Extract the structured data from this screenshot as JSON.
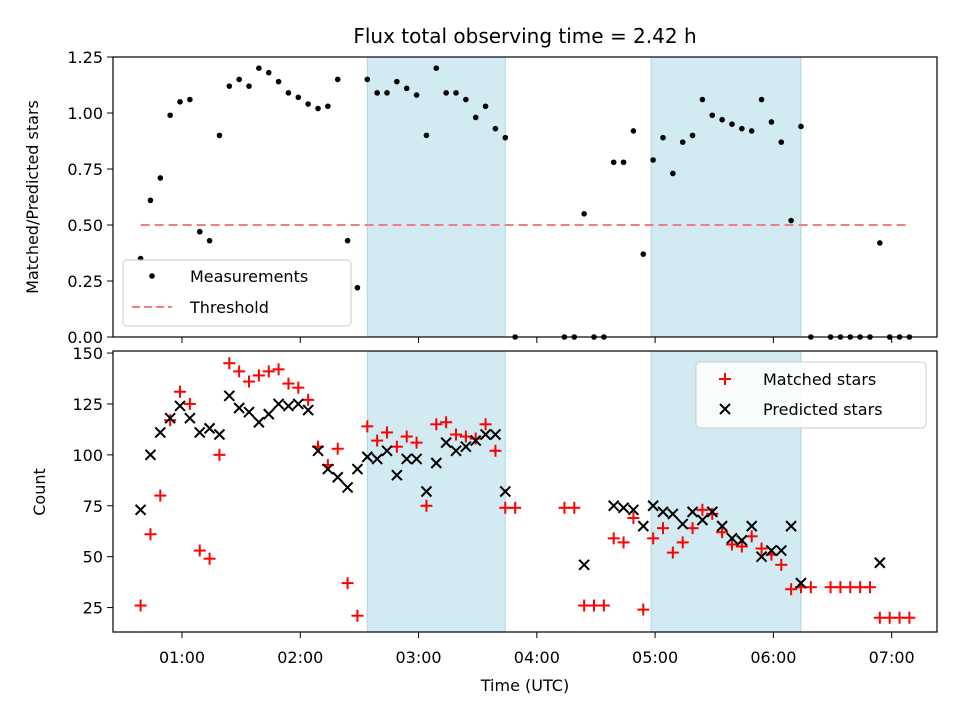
{
  "chart_data": [
    {
      "type": "scatter",
      "title": "Flux total observing time = 2.42 h",
      "xlabel": "",
      "ylabel": "Matched/Predicted stars",
      "xlim": [
        "00:25",
        "07:23"
      ],
      "ylim": [
        0,
        1.25
      ],
      "grid": false,
      "legend_position": "lower-left",
      "y_ticks": [
        "0.00",
        "0.25",
        "0.50",
        "0.75",
        "1.00",
        "1.25"
      ],
      "shaded_intervals": [
        [
          "02:34",
          "03:44"
        ],
        [
          "04:58",
          "06:14"
        ]
      ],
      "shade_color": "#add8e6",
      "series": [
        {
          "name": "Measurements",
          "marker": "dot",
          "color": "#000000",
          "points": [
            [
              "00:39",
              0.35
            ],
            [
              "00:44",
              0.61
            ],
            [
              "00:49",
              0.71
            ],
            [
              "00:54",
              0.99
            ],
            [
              "00:59",
              1.05
            ],
            [
              "01:04",
              1.06
            ],
            [
              "01:09",
              0.47
            ],
            [
              "01:14",
              0.43
            ],
            [
              "01:19",
              0.9
            ],
            [
              "01:24",
              1.12
            ],
            [
              "01:29",
              1.15
            ],
            [
              "01:34",
              1.12
            ],
            [
              "01:39",
              1.2
            ],
            [
              "01:44",
              1.18
            ],
            [
              "01:49",
              1.14
            ],
            [
              "01:54",
              1.09
            ],
            [
              "01:59",
              1.07
            ],
            [
              "02:04",
              1.04
            ],
            [
              "02:09",
              1.02
            ],
            [
              "02:14",
              1.03
            ],
            [
              "02:19",
              1.15
            ],
            [
              "02:24",
              0.43
            ],
            [
              "02:29",
              0.22
            ],
            [
              "02:34",
              1.15
            ],
            [
              "02:39",
              1.09
            ],
            [
              "02:44",
              1.09
            ],
            [
              "02:49",
              1.14
            ],
            [
              "02:54",
              1.11
            ],
            [
              "02:59",
              1.08
            ],
            [
              "03:04",
              0.9
            ],
            [
              "03:09",
              1.2
            ],
            [
              "03:14",
              1.09
            ],
            [
              "03:19",
              1.09
            ],
            [
              "03:24",
              1.06
            ],
            [
              "03:29",
              0.98
            ],
            [
              "03:34",
              1.03
            ],
            [
              "03:39",
              0.93
            ],
            [
              "03:44",
              0.89
            ],
            [
              "03:49",
              0.0
            ],
            [
              "04:14",
              0.0
            ],
            [
              "04:19",
              0.0
            ],
            [
              "04:24",
              0.55
            ],
            [
              "04:29",
              0.0
            ],
            [
              "04:34",
              0.0
            ],
            [
              "04:39",
              0.78
            ],
            [
              "04:44",
              0.78
            ],
            [
              "04:49",
              0.92
            ],
            [
              "04:54",
              0.37
            ],
            [
              "04:59",
              0.79
            ],
            [
              "05:04",
              0.89
            ],
            [
              "05:09",
              0.73
            ],
            [
              "05:14",
              0.87
            ],
            [
              "05:19",
              0.9
            ],
            [
              "05:24",
              1.06
            ],
            [
              "05:29",
              0.99
            ],
            [
              "05:34",
              0.97
            ],
            [
              "05:39",
              0.95
            ],
            [
              "05:44",
              0.93
            ],
            [
              "05:49",
              0.92
            ],
            [
              "05:54",
              1.06
            ],
            [
              "05:59",
              0.96
            ],
            [
              "06:04",
              0.87
            ],
            [
              "06:09",
              0.52
            ],
            [
              "06:14",
              0.94
            ],
            [
              "06:19",
              0.0
            ],
            [
              "06:29",
              0.0
            ],
            [
              "06:34",
              0.0
            ],
            [
              "06:39",
              0.0
            ],
            [
              "06:44",
              0.0
            ],
            [
              "06:49",
              0.0
            ],
            [
              "06:54",
              0.42
            ],
            [
              "06:59",
              0.0
            ],
            [
              "07:04",
              0.0
            ],
            [
              "07:09",
              0.0
            ]
          ]
        },
        {
          "name": "Threshold",
          "style": "dashed",
          "color": "#f08080",
          "points": [
            [
              "00:39",
              0.5
            ],
            [
              "07:09",
              0.5
            ]
          ]
        }
      ]
    },
    {
      "type": "scatter",
      "title": "",
      "xlabel": "Time (UTC)",
      "ylabel": "Count",
      "xlim": [
        "00:25",
        "07:23"
      ],
      "ylim": [
        13,
        151
      ],
      "grid": false,
      "legend_position": "top-right",
      "y_ticks": [
        "25",
        "50",
        "75",
        "100",
        "125",
        "150"
      ],
      "x_ticks": [
        "01:00",
        "02:00",
        "03:00",
        "04:00",
        "05:00",
        "06:00",
        "07:00"
      ],
      "shaded_intervals": [
        [
          "02:34",
          "03:44"
        ],
        [
          "04:58",
          "06:14"
        ]
      ],
      "shade_color": "#add8e6",
      "series": [
        {
          "name": "Matched stars",
          "marker": "plus",
          "color": "#ff0000",
          "points": [
            [
              "00:39",
              26
            ],
            [
              "00:44",
              61
            ],
            [
              "00:49",
              80
            ],
            [
              "00:54",
              117
            ],
            [
              "00:59",
              131
            ],
            [
              "01:04",
              125
            ],
            [
              "01:09",
              53
            ],
            [
              "01:14",
              49
            ],
            [
              "01:19",
              100
            ],
            [
              "01:24",
              145
            ],
            [
              "01:29",
              141
            ],
            [
              "01:34",
              136
            ],
            [
              "01:39",
              139
            ],
            [
              "01:44",
              141
            ],
            [
              "01:49",
              142
            ],
            [
              "01:54",
              135
            ],
            [
              "01:59",
              133
            ],
            [
              "02:04",
              127
            ],
            [
              "02:09",
              104
            ],
            [
              "02:14",
              95
            ],
            [
              "02:19",
              103
            ],
            [
              "02:24",
              37
            ],
            [
              "02:29",
              21
            ],
            [
              "02:34",
              114
            ],
            [
              "02:39",
              107
            ],
            [
              "02:44",
              111
            ],
            [
              "02:49",
              104
            ],
            [
              "02:54",
              109
            ],
            [
              "02:59",
              106
            ],
            [
              "03:04",
              75
            ],
            [
              "03:09",
              115
            ],
            [
              "03:14",
              116
            ],
            [
              "03:19",
              110
            ],
            [
              "03:24",
              109
            ],
            [
              "03:29",
              108
            ],
            [
              "03:34",
              115
            ],
            [
              "03:39",
              102
            ],
            [
              "03:44",
              74
            ],
            [
              "03:49",
              74
            ],
            [
              "04:14",
              74
            ],
            [
              "04:19",
              74
            ],
            [
              "04:24",
              26
            ],
            [
              "04:29",
              26
            ],
            [
              "04:34",
              26
            ],
            [
              "04:39",
              59
            ],
            [
              "04:44",
              57
            ],
            [
              "04:49",
              69
            ],
            [
              "04:54",
              24
            ],
            [
              "04:59",
              59
            ],
            [
              "05:04",
              64
            ],
            [
              "05:09",
              52
            ],
            [
              "05:14",
              57
            ],
            [
              "05:19",
              64
            ],
            [
              "05:24",
              73
            ],
            [
              "05:29",
              71
            ],
            [
              "05:34",
              62
            ],
            [
              "05:39",
              56
            ],
            [
              "05:44",
              55
            ],
            [
              "05:49",
              60
            ],
            [
              "05:54",
              54
            ],
            [
              "05:59",
              51
            ],
            [
              "06:04",
              46
            ],
            [
              "06:09",
              34
            ],
            [
              "06:14",
              35
            ],
            [
              "06:19",
              35
            ],
            [
              "06:29",
              35
            ],
            [
              "06:34",
              35
            ],
            [
              "06:39",
              35
            ],
            [
              "06:44",
              35
            ],
            [
              "06:49",
              35
            ],
            [
              "06:54",
              20
            ],
            [
              "06:59",
              20
            ],
            [
              "07:04",
              20
            ],
            [
              "07:09",
              20
            ]
          ]
        },
        {
          "name": "Predicted stars",
          "marker": "x",
          "color": "#000000",
          "points": [
            [
              "00:39",
              73
            ],
            [
              "00:44",
              100
            ],
            [
              "00:49",
              111
            ],
            [
              "00:54",
              118
            ],
            [
              "00:59",
              124
            ],
            [
              "01:04",
              118
            ],
            [
              "01:09",
              111
            ],
            [
              "01:14",
              113
            ],
            [
              "01:19",
              110
            ],
            [
              "01:24",
              129
            ],
            [
              "01:29",
              123
            ],
            [
              "01:34",
              121
            ],
            [
              "01:39",
              116
            ],
            [
              "01:44",
              120
            ],
            [
              "01:49",
              125
            ],
            [
              "01:54",
              124
            ],
            [
              "01:59",
              125
            ],
            [
              "02:04",
              122
            ],
            [
              "02:09",
              102
            ],
            [
              "02:14",
              93
            ],
            [
              "02:19",
              89
            ],
            [
              "02:24",
              84
            ],
            [
              "02:29",
              93
            ],
            [
              "02:34",
              99
            ],
            [
              "02:39",
              98
            ],
            [
              "02:44",
              102
            ],
            [
              "02:49",
              90
            ],
            [
              "02:54",
              98
            ],
            [
              "02:59",
              98
            ],
            [
              "03:04",
              82
            ],
            [
              "03:09",
              96
            ],
            [
              "03:14",
              106
            ],
            [
              "03:19",
              102
            ],
            [
              "03:24",
              104
            ],
            [
              "03:29",
              107
            ],
            [
              "03:34",
              110
            ],
            [
              "03:39",
              110
            ],
            [
              "03:44",
              82
            ],
            [
              "04:24",
              46
            ],
            [
              "04:39",
              75
            ],
            [
              "04:44",
              74
            ],
            [
              "04:49",
              73
            ],
            [
              "04:54",
              65
            ],
            [
              "04:59",
              75
            ],
            [
              "05:04",
              72
            ],
            [
              "05:09",
              71
            ],
            [
              "05:14",
              66
            ],
            [
              "05:19",
              72
            ],
            [
              "05:24",
              68
            ],
            [
              "05:29",
              72
            ],
            [
              "05:34",
              65
            ],
            [
              "05:39",
              59
            ],
            [
              "05:44",
              58
            ],
            [
              "05:49",
              65
            ],
            [
              "05:54",
              50
            ],
            [
              "05:59",
              53
            ],
            [
              "06:04",
              53
            ],
            [
              "06:09",
              65
            ],
            [
              "06:14",
              37
            ],
            [
              "06:54",
              47
            ]
          ]
        }
      ]
    }
  ]
}
